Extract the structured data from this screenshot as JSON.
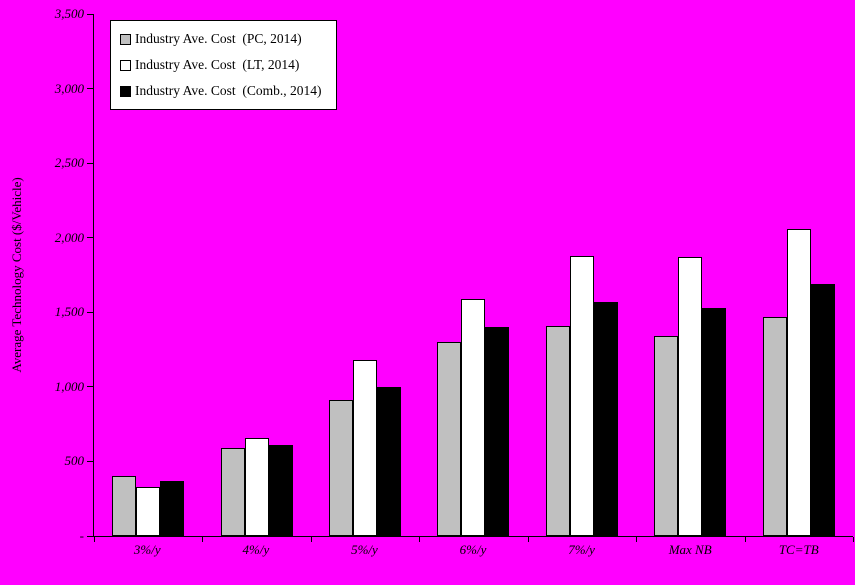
{
  "chart_data": {
    "type": "bar",
    "title": "",
    "ylabel": "Average Technology Cost ($/Vehicle)",
    "xlabel": "",
    "categories": [
      "3%/y",
      "4%/y",
      "5%/y",
      "6%/y",
      "7%/y",
      "Max NB",
      "TC=TB"
    ],
    "series": [
      {
        "name": "Industry Ave. Cost  (PC, 2014)",
        "color": "#c0c0c0",
        "values": [
          400,
          590,
          910,
          1300,
          1410,
          1340,
          1470
        ]
      },
      {
        "name": "Industry Ave. Cost  (LT, 2014)",
        "color": "#ffffff",
        "values": [
          330,
          660,
          1180,
          1590,
          1880,
          1870,
          2060
        ]
      },
      {
        "name": "Industry Ave. Cost  (Comb., 2014)",
        "color": "#000000",
        "values": [
          370,
          610,
          1000,
          1400,
          1570,
          1530,
          1690
        ]
      }
    ],
    "ylim": [
      0,
      3500
    ],
    "ytick_interval": 500,
    "ytick_labels": [
      "-",
      "500",
      "1,000",
      "1,500",
      "2,000",
      "2,500",
      "3,000",
      "3,500"
    ],
    "grid": false,
    "legend_position": "top-left",
    "background_color": "#ff00ff",
    "plot_background_color": "#ff00ff",
    "bar_border_color": "#000000"
  }
}
